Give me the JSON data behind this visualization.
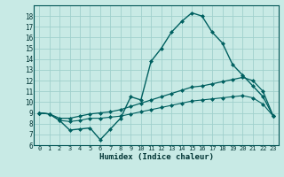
{
  "background_color": "#c8eae5",
  "grid_color": "#a0d0cc",
  "line_color": "#006060",
  "xlabel": "Humidex (Indice chaleur)",
  "xlim": [
    -0.5,
    23.5
  ],
  "ylim": [
    6,
    19
  ],
  "xticks": [
    0,
    1,
    2,
    3,
    4,
    5,
    6,
    7,
    8,
    9,
    10,
    11,
    12,
    13,
    14,
    15,
    16,
    17,
    18,
    19,
    20,
    21,
    22,
    23
  ],
  "yticks": [
    6,
    7,
    8,
    9,
    10,
    11,
    12,
    13,
    14,
    15,
    16,
    17,
    18
  ],
  "curve1_x": [
    0,
    1,
    2,
    3,
    4,
    5,
    6,
    7,
    8,
    9,
    10,
    11,
    12,
    13,
    14,
    15,
    16,
    17,
    18,
    19,
    20,
    21,
    22,
    23
  ],
  "curve1_y": [
    9.0,
    8.9,
    8.3,
    7.4,
    7.5,
    7.6,
    6.5,
    7.5,
    8.5,
    10.5,
    10.2,
    13.8,
    15.0,
    16.5,
    17.5,
    18.3,
    18.0,
    16.5,
    15.5,
    13.5,
    12.5,
    11.5,
    10.5,
    8.7
  ],
  "curve2_x": [
    0,
    1,
    2,
    3,
    4,
    5,
    6,
    7,
    8,
    9,
    10,
    11,
    12,
    13,
    14,
    15,
    16,
    17,
    18,
    19,
    20,
    21,
    22,
    23
  ],
  "curve2_y": [
    9.0,
    8.9,
    8.5,
    8.5,
    8.7,
    8.9,
    9.0,
    9.1,
    9.3,
    9.6,
    9.9,
    10.2,
    10.5,
    10.8,
    11.1,
    11.4,
    11.5,
    11.7,
    11.9,
    12.1,
    12.3,
    12.0,
    11.0,
    8.7
  ],
  "curve3_x": [
    0,
    1,
    2,
    3,
    4,
    5,
    6,
    7,
    8,
    9,
    10,
    11,
    12,
    13,
    14,
    15,
    16,
    17,
    18,
    19,
    20,
    21,
    22,
    23
  ],
  "curve3_y": [
    9.0,
    8.9,
    8.3,
    8.2,
    8.3,
    8.5,
    8.5,
    8.6,
    8.7,
    8.9,
    9.1,
    9.3,
    9.5,
    9.7,
    9.9,
    10.1,
    10.2,
    10.3,
    10.4,
    10.5,
    10.6,
    10.4,
    9.8,
    8.7
  ]
}
